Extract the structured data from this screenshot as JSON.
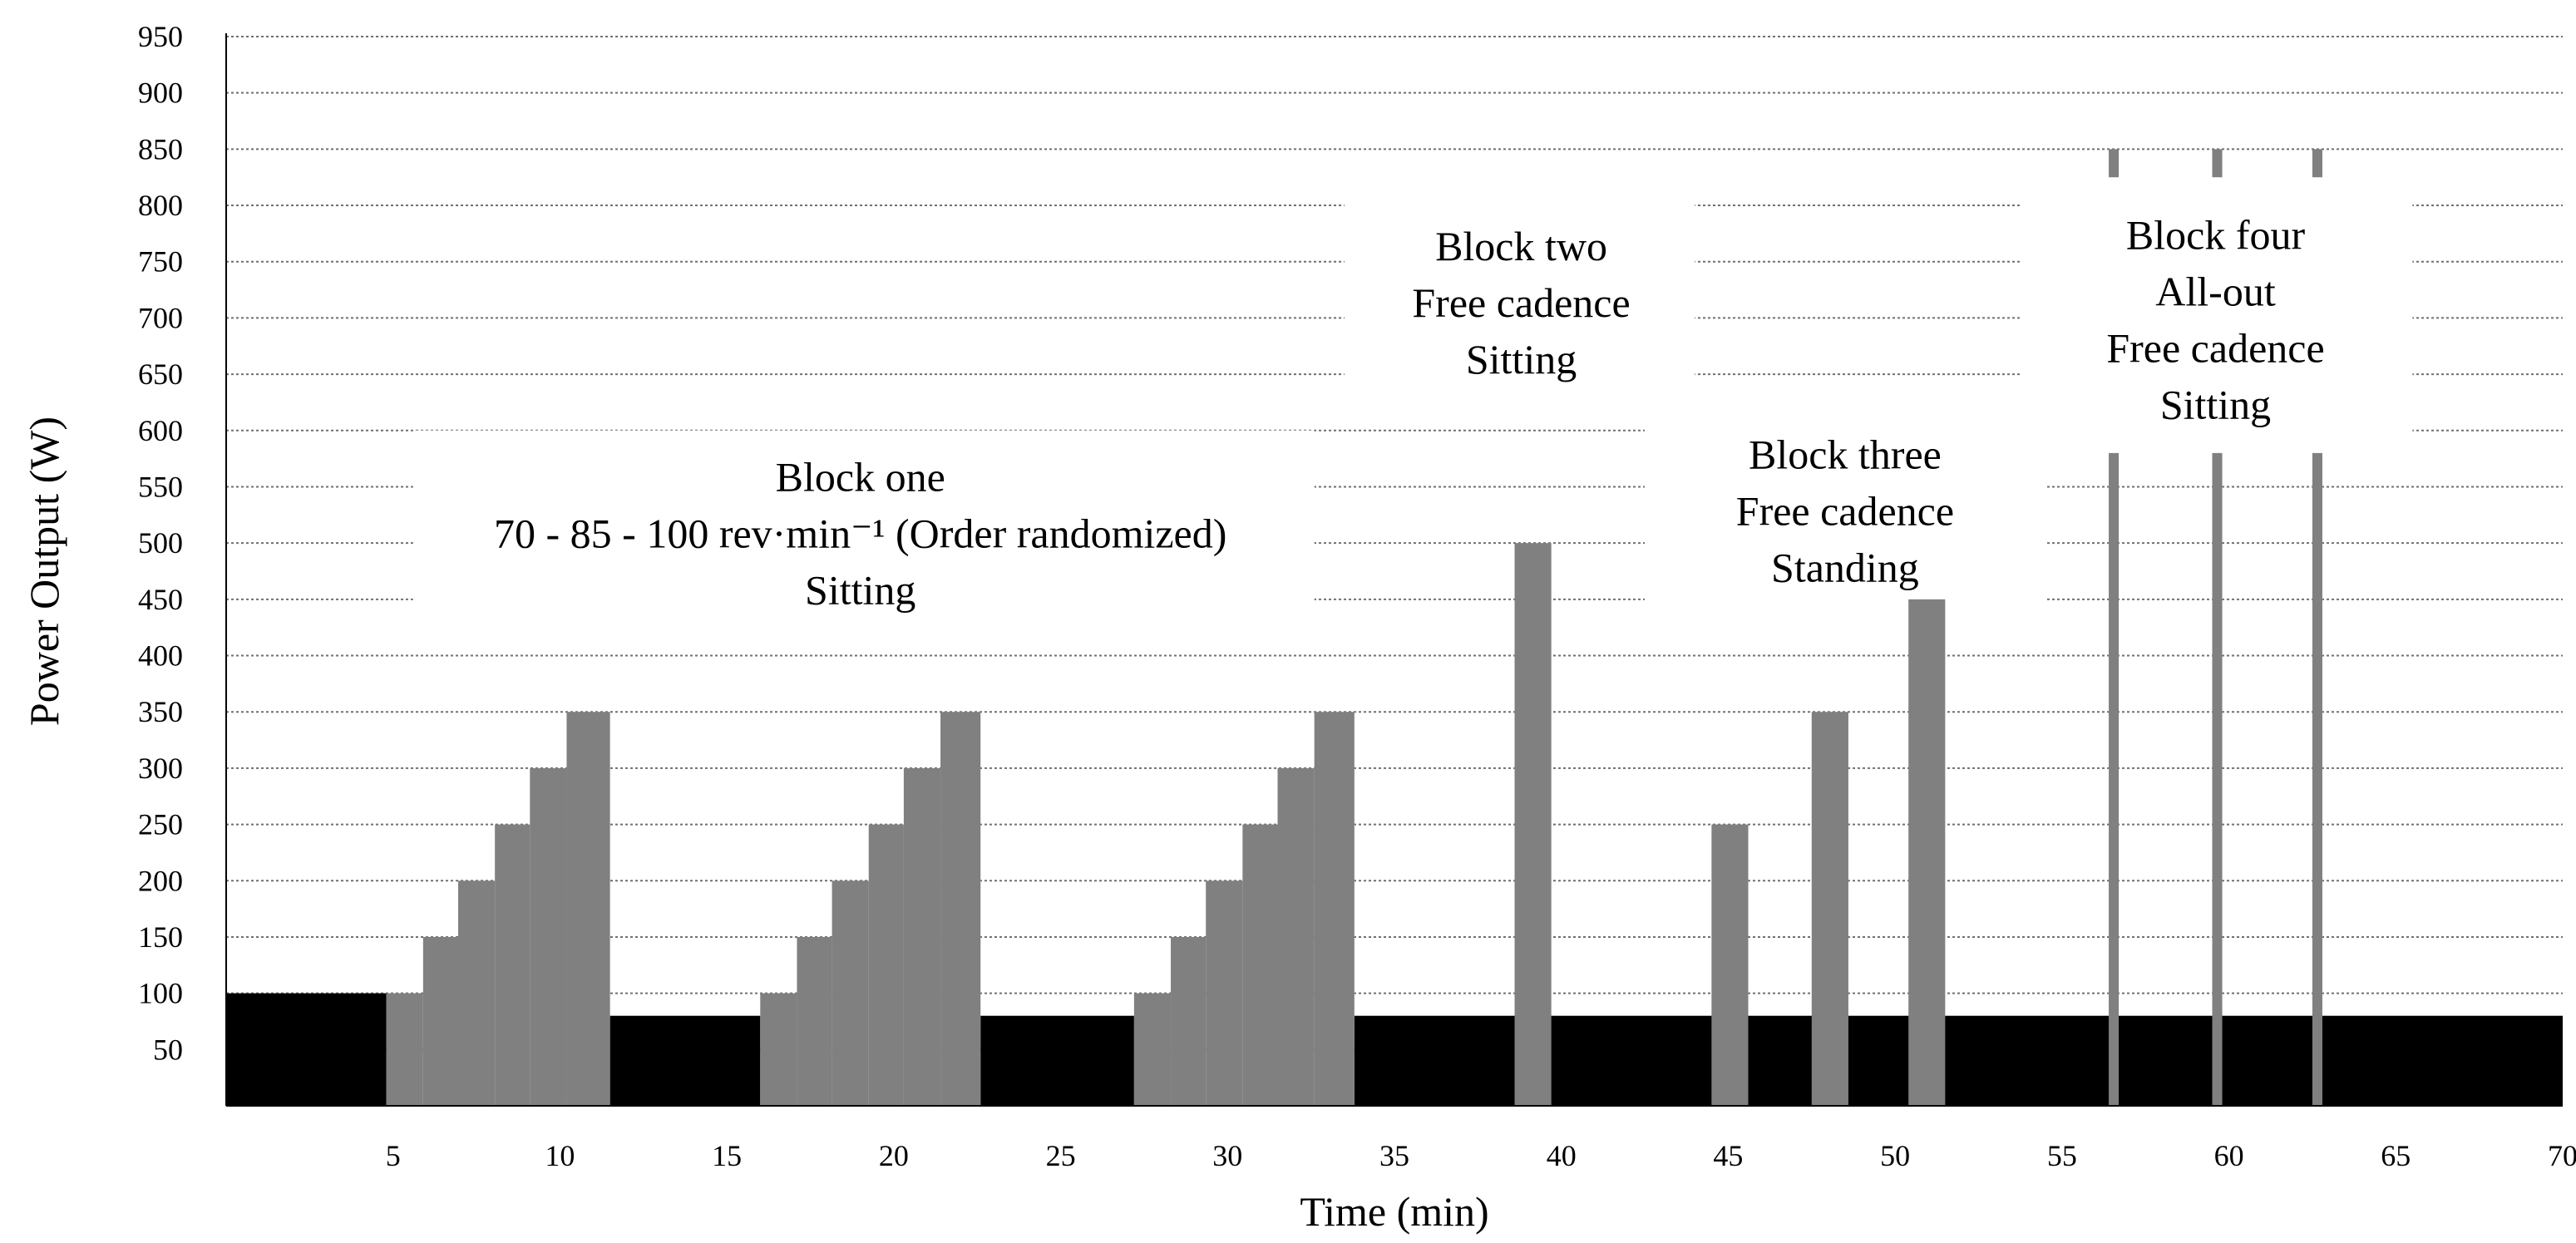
{
  "chart_data": {
    "type": "bar",
    "xlabel": "Time (min)",
    "ylabel": "Power Output (W)",
    "xlim": [
      0,
      70
    ],
    "ylim": [
      0,
      950
    ],
    "x_ticks": [
      5,
      10,
      15,
      20,
      25,
      30,
      35,
      40,
      45,
      50,
      55,
      60,
      65,
      70
    ],
    "y_ticks": [
      50,
      100,
      150,
      200,
      250,
      300,
      350,
      400,
      450,
      500,
      550,
      600,
      650,
      700,
      750,
      800,
      850,
      900,
      950
    ],
    "grid": true,
    "colors": {
      "baseline": "#000000",
      "work": "#808080",
      "grid": "#707070"
    },
    "baseline_segments": [
      {
        "start": 0,
        "end": 4.8,
        "power": 100
      },
      {
        "start": 11.5,
        "end": 16.0,
        "power": 80
      },
      {
        "start": 22.6,
        "end": 27.2,
        "power": 80
      },
      {
        "start": 33.8,
        "end": 70.0,
        "power": 80
      }
    ],
    "work_bars": [
      {
        "start": 4.8,
        "end": 5.9,
        "power": 100
      },
      {
        "start": 5.9,
        "end": 6.95,
        "power": 150
      },
      {
        "start": 6.95,
        "end": 8.05,
        "power": 200
      },
      {
        "start": 8.05,
        "end": 9.1,
        "power": 250
      },
      {
        "start": 9.1,
        "end": 10.2,
        "power": 300
      },
      {
        "start": 10.2,
        "end": 11.5,
        "power": 350
      },
      {
        "start": 16.0,
        "end": 17.1,
        "power": 100
      },
      {
        "start": 17.1,
        "end": 18.15,
        "power": 150
      },
      {
        "start": 18.15,
        "end": 19.25,
        "power": 200
      },
      {
        "start": 19.25,
        "end": 20.3,
        "power": 250
      },
      {
        "start": 20.3,
        "end": 21.4,
        "power": 300
      },
      {
        "start": 21.4,
        "end": 22.6,
        "power": 350
      },
      {
        "start": 27.2,
        "end": 28.3,
        "power": 100
      },
      {
        "start": 28.3,
        "end": 29.35,
        "power": 150
      },
      {
        "start": 29.35,
        "end": 30.45,
        "power": 200
      },
      {
        "start": 30.45,
        "end": 31.5,
        "power": 250
      },
      {
        "start": 31.5,
        "end": 32.6,
        "power": 300
      },
      {
        "start": 32.6,
        "end": 33.8,
        "power": 350
      },
      {
        "start": 38.6,
        "end": 39.7,
        "power": 500
      },
      {
        "start": 44.5,
        "end": 45.6,
        "power": 250
      },
      {
        "start": 47.5,
        "end": 48.6,
        "power": 350
      },
      {
        "start": 50.4,
        "end": 51.5,
        "power": 450
      }
    ],
    "sprint_bars": [
      {
        "x": 56.4,
        "width": 0.3,
        "low": 0,
        "high": 580,
        "cap_low": 825,
        "cap_high": 850
      },
      {
        "x": 59.5,
        "width": 0.3,
        "low": 0,
        "high": 580,
        "cap_low": 825,
        "cap_high": 850
      },
      {
        "x": 62.5,
        "width": 0.3,
        "low": 0,
        "high": 580,
        "cap_low": 825,
        "cap_high": 850
      }
    ],
    "annotations": [
      {
        "lines": [
          "Block one",
          "70 - 85 - 100 rev·min⁻¹  (Order randomized)",
          "Sitting"
        ],
        "x": 19.0,
        "y": 555,
        "mask": [
          5.6,
          32.6,
          435,
          600
        ]
      },
      {
        "lines": [
          "Block two",
          "Free cadence",
          "Sitting"
        ],
        "x": 38.8,
        "y": 760,
        "mask": [
          33.5,
          44.0,
          615,
          815
        ]
      },
      {
        "lines": [
          "Block three",
          "Free cadence",
          "Standing"
        ],
        "x": 48.5,
        "y": 575,
        "mask": [
          42.5,
          54.5,
          425,
          615
        ]
      },
      {
        "lines": [
          "Block four",
          "All-out",
          "Free cadence",
          "Sitting"
        ],
        "x": 59.6,
        "y": 770,
        "mask": [
          53.8,
          65.5,
          582,
          815
        ]
      }
    ]
  }
}
